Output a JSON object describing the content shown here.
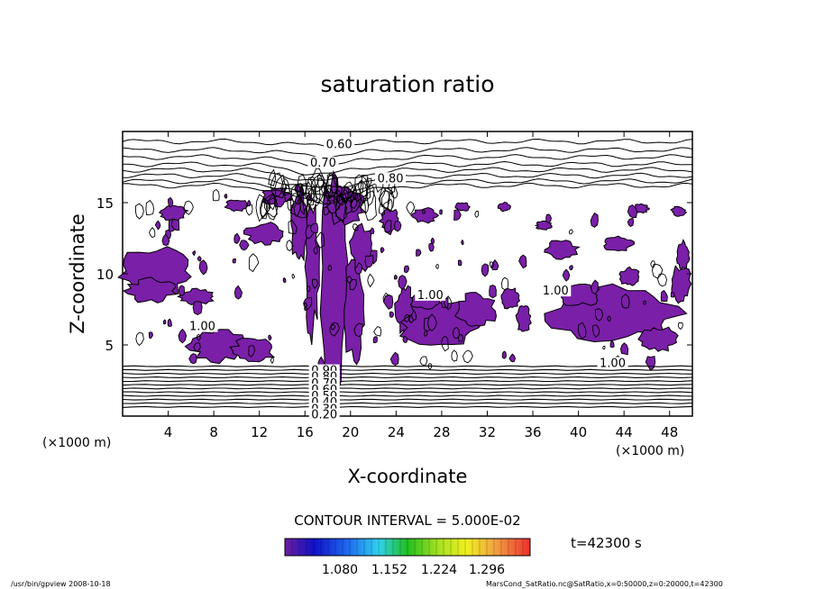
{
  "chart_data": {
    "type": "heatmap",
    "title": "saturation ratio",
    "xlabel": "X-coordinate",
    "ylabel": "Z-coordinate",
    "x_unit": "(×1000 m)",
    "y_unit": "(×1000 m)",
    "xlim": [
      0,
      50
    ],
    "ylim": [
      0,
      20
    ],
    "x_ticks": [
      "4",
      "8",
      "12",
      "16",
      "20",
      "24",
      "28",
      "32",
      "36",
      "40",
      "44",
      "48"
    ],
    "y_ticks": [
      "5",
      "10",
      "15"
    ],
    "contour_labels": [
      "0.60",
      "0.70",
      "0.80",
      "1.00",
      "1.00",
      "1.00",
      "1.00",
      "0.90",
      "0.80",
      "0.70",
      "0.60",
      "0.50",
      "0.40",
      "0.30",
      "0.20"
    ],
    "contour_interval_text": "CONTOUR INTERVAL = 5.000E-02",
    "colorbar_ticks": [
      "1.080",
      "1.152",
      "1.224",
      "1.296"
    ],
    "time_text": "t=42300 s",
    "footer_left": "/usr/bin/gpview   2008-10-18",
    "footer_right": "MarsCond_SatRatio.nc@SatRatio,x=0:50000,z=0:20000,t=42300",
    "fill_color": "#7a1fa8",
    "shaded_threshold": 1.0
  }
}
